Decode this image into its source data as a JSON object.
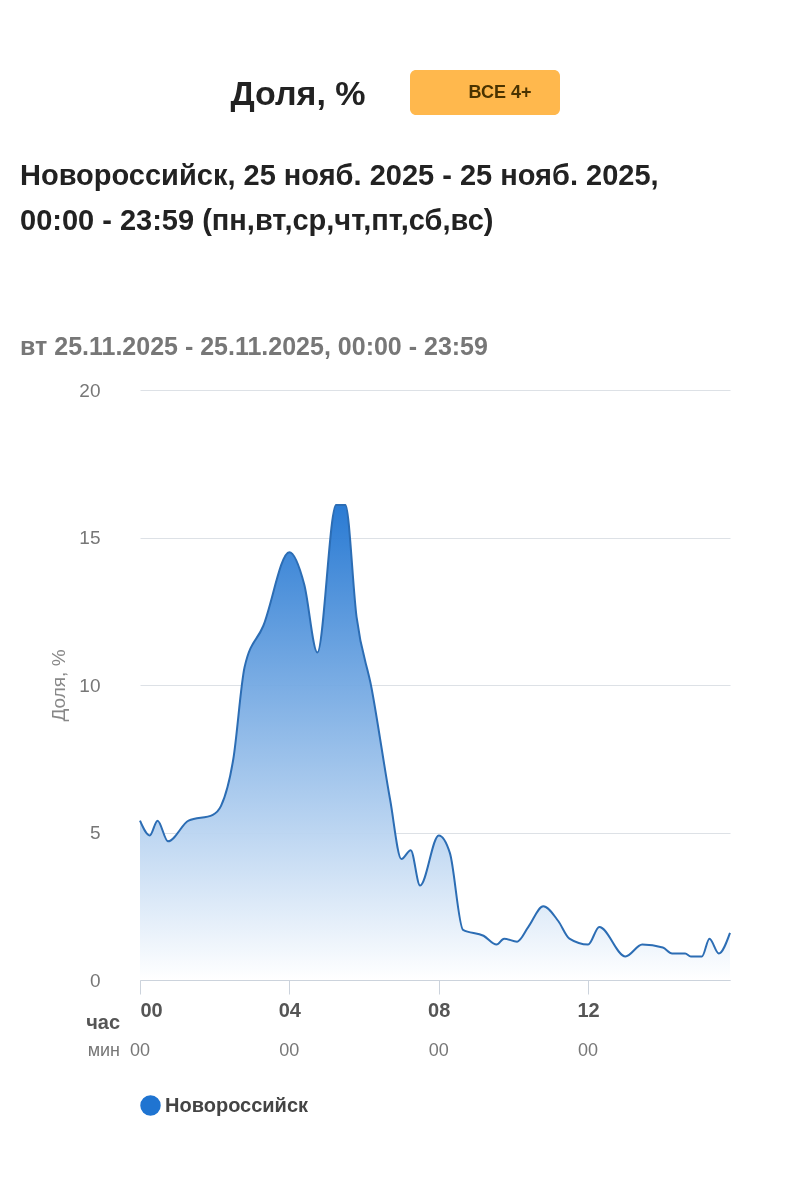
{
  "chart_data": {
    "type": "area",
    "title": "Доля, %",
    "subtitle": "Новороссийск, 25 нояб. 2025 - 25 нояб. 2025, 00:00 - 23:59 (пн,вт,ср,чт,пт,сб,вс)",
    "annotations": [
      "ВСЕ 4+",
      "вт 25.11.2025 - 25.11.2025, 00:00 - 23:59",
      "час",
      "мин",
      "00",
      "00",
      "00",
      "00"
    ],
    "ylabel": "Доля, %",
    "x": [
      0,
      0.26,
      0.47,
      0.75,
      1.3,
      1.95,
      2.17,
      2.5,
      2.8,
      3.3,
      4.0,
      4.4,
      4.75,
      5.25,
      5.5,
      5.8,
      6.2,
      6.7,
      7.0,
      7.25,
      7.5,
      8.0,
      8.3,
      8.65,
      9.2,
      9.55,
      9.75,
      10.1,
      10.4,
      10.8,
      11.2,
      11.5,
      12.0,
      12.3,
      13.0,
      13.45,
      14.0,
      14.25,
      14.6,
      14.75,
      15.05,
      15.25,
      15.5,
      15.8
    ],
    "series": [
      {
        "name": "Новороссийск",
        "color": "#1f74d1",
        "values": [
          5.4,
          4.9,
          5.4,
          4.7,
          5.4,
          5.6,
          5.9,
          7.5,
          10.6,
          12.0,
          14.5,
          13.4,
          11.1,
          16.1,
          16.1,
          12.3,
          9.9,
          6.1,
          4.1,
          4.4,
          3.2,
          4.9,
          4.3,
          1.7,
          1.5,
          1.2,
          1.4,
          1.3,
          1.8,
          2.5,
          2.0,
          1.4,
          1.2,
          1.8,
          0.8,
          1.2,
          1.1,
          0.9,
          0.9,
          0.8,
          0.8,
          1.4,
          0.9,
          1.6
        ]
      }
    ],
    "xlim": [
      0,
      15.8
    ],
    "xticks": [
      {
        "value": 0,
        "label": "00"
      },
      {
        "value": 4,
        "label": "04"
      },
      {
        "value": 8,
        "label": "08"
      },
      {
        "value": 12,
        "label": "12"
      }
    ],
    "ylim": [
      0,
      20
    ],
    "yticks": [
      0,
      5,
      10,
      15,
      20
    ],
    "grid": "y",
    "legend": "bottom"
  }
}
